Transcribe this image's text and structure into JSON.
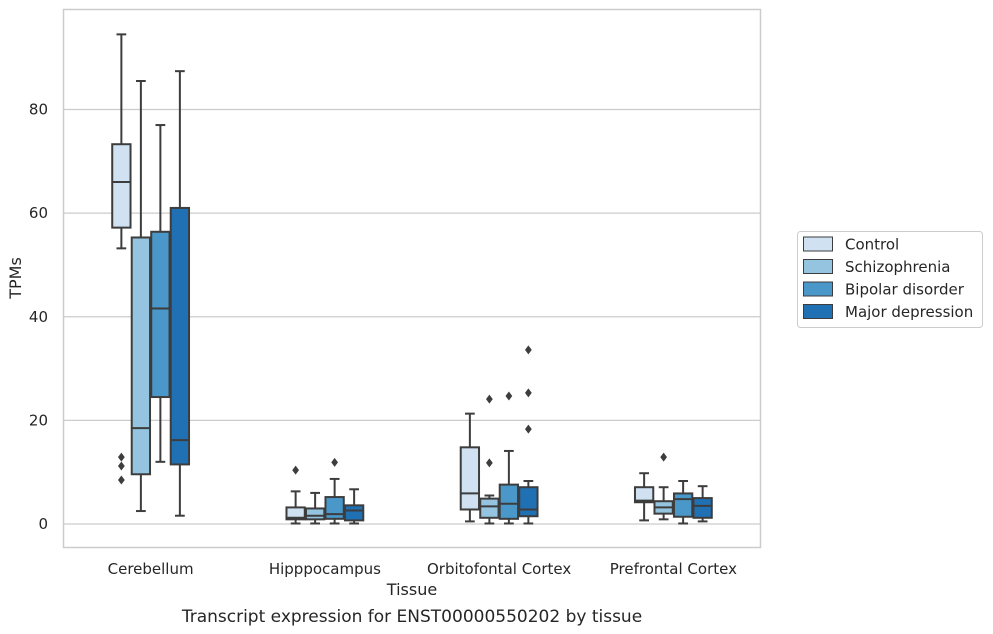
{
  "chart_data": {
    "type": "box",
    "title": "Transcript expression for ENST00000550202 by tissue",
    "xlabel": "Tissue",
    "ylabel": "TPMs",
    "ylim": [
      -4.5,
      99
    ],
    "yticks": [
      0,
      20,
      40,
      60,
      80
    ],
    "grid": "horizontal",
    "legend_position": "right",
    "categories": [
      "Cerebellum",
      "Hipppocampus",
      "Orbitofontal Cortex",
      "Prefrontal Cortex"
    ],
    "series": [
      {
        "name": "Control",
        "color": "#d0e1f2",
        "boxes": [
          {
            "whisker_low": 53.2,
            "q1": 57.2,
            "median": 66.0,
            "q3": 73.3,
            "whisker_high": 94.5,
            "outliers": [
              12.9,
              11.2,
              8.5
            ]
          },
          {
            "whisker_low": 0.1,
            "q1": 0.9,
            "median": 1.2,
            "q3": 3.2,
            "whisker_high": 6.3,
            "outliers": [
              10.4
            ]
          },
          {
            "whisker_low": 0.5,
            "q1": 2.8,
            "median": 5.9,
            "q3": 14.8,
            "whisker_high": 21.3,
            "outliers": []
          },
          {
            "whisker_low": 0.7,
            "q1": 4.2,
            "median": 4.5,
            "q3": 7.1,
            "whisker_high": 9.8,
            "outliers": []
          }
        ]
      },
      {
        "name": "Schizophrenia",
        "color": "#94c4df",
        "boxes": [
          {
            "whisker_low": 2.5,
            "q1": 9.6,
            "median": 18.5,
            "q3": 55.3,
            "whisker_high": 85.5,
            "outliers": []
          },
          {
            "whisker_low": 0.1,
            "q1": 0.9,
            "median": 1.6,
            "q3": 3.0,
            "whisker_high": 6.0,
            "outliers": []
          },
          {
            "whisker_low": 0.1,
            "q1": 1.2,
            "median": 3.4,
            "q3": 4.9,
            "whisker_high": 5.5,
            "outliers": [
              24.1,
              11.8
            ]
          },
          {
            "whisker_low": 0.9,
            "q1": 2.0,
            "median": 3.2,
            "q3": 4.4,
            "whisker_high": 7.1,
            "outliers": [
              12.9
            ]
          }
        ]
      },
      {
        "name": "Bipolar disorder",
        "color": "#4a98c9",
        "boxes": [
          {
            "whisker_low": 12.0,
            "q1": 24.5,
            "median": 41.6,
            "q3": 56.4,
            "whisker_high": 77.0,
            "outliers": []
          },
          {
            "whisker_low": 0.1,
            "q1": 1.0,
            "median": 1.9,
            "q3": 5.2,
            "whisker_high": 8.7,
            "outliers": [
              11.9
            ]
          },
          {
            "whisker_low": 0.1,
            "q1": 1.0,
            "median": 3.9,
            "q3": 7.6,
            "whisker_high": 14.1,
            "outliers": [
              24.7
            ]
          },
          {
            "whisker_low": 0.1,
            "q1": 1.4,
            "median": 4.8,
            "q3": 5.9,
            "whisker_high": 8.3,
            "outliers": []
          }
        ]
      },
      {
        "name": "Major depression",
        "color": "#2070b4",
        "boxes": [
          {
            "whisker_low": 1.6,
            "q1": 11.5,
            "median": 16.2,
            "q3": 61.0,
            "whisker_high": 87.4,
            "outliers": []
          },
          {
            "whisker_low": 0.1,
            "q1": 0.7,
            "median": 2.6,
            "q3": 3.6,
            "whisker_high": 6.7,
            "outliers": []
          },
          {
            "whisker_low": 0.1,
            "q1": 1.5,
            "median": 2.8,
            "q3": 7.1,
            "whisker_high": 8.3,
            "outliers": [
              33.6,
              25.3,
              18.3
            ]
          },
          {
            "whisker_low": 0.5,
            "q1": 1.2,
            "median": 3.5,
            "q3": 5.0,
            "whisker_high": 7.3,
            "outliers": []
          }
        ]
      }
    ]
  }
}
